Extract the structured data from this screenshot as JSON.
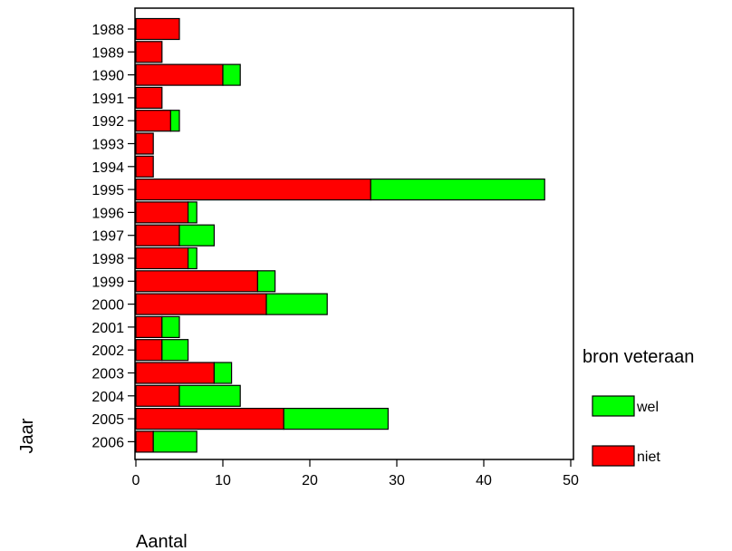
{
  "chart_data": {
    "type": "bar",
    "orientation": "horizontal",
    "stacked": true,
    "categories": [
      "1988",
      "1989",
      "1990",
      "1991",
      "1992",
      "1993",
      "1994",
      "1995",
      "1996",
      "1997",
      "1998",
      "1999",
      "2000",
      "2001",
      "2002",
      "2003",
      "2004",
      "2005",
      "2006"
    ],
    "series": [
      {
        "name": "niet",
        "color": "#ff0000",
        "values": [
          5,
          3,
          10,
          3,
          4,
          2,
          2,
          27,
          6,
          5,
          6,
          14,
          15,
          3,
          3,
          9,
          5,
          17,
          2
        ]
      },
      {
        "name": "wel",
        "color": "#00ff00",
        "values": [
          0,
          0,
          2,
          0,
          1,
          0,
          0,
          20,
          1,
          4,
          1,
          2,
          7,
          2,
          3,
          2,
          7,
          12,
          5
        ]
      }
    ],
    "xlabel": "Aantal",
    "ylabel": "Jaar",
    "xlim": [
      0,
      50
    ],
    "xticks": [
      "0",
      "10",
      "20",
      "30",
      "40",
      "50"
    ],
    "legend": {
      "title": "bron veteraan",
      "placement": "right",
      "order": [
        "wel",
        "niet"
      ]
    },
    "grid": false
  }
}
